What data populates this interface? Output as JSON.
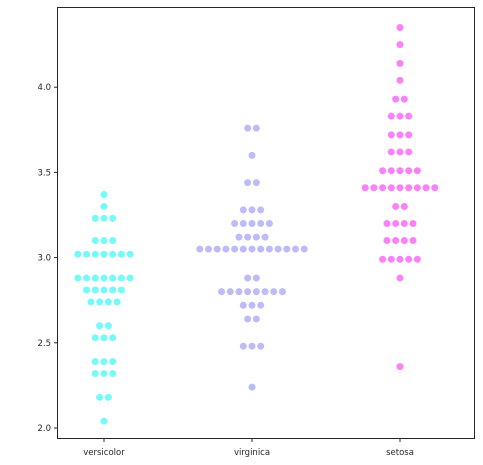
{
  "chart_data": {
    "type": "scatter",
    "subtype": "swarm",
    "title": "",
    "xlabel": "",
    "ylabel": "",
    "categories": [
      "versicolor",
      "virginica",
      "setosa"
    ],
    "ylim": [
      1.96,
      4.4
    ],
    "yticks": [
      "2.0",
      "2.5",
      "3.0",
      "3.5",
      "4.0"
    ],
    "grid": false,
    "colors": {
      "versicolor": "#5ef8f8",
      "virginica": "#b1b0f8",
      "setosa": "#f86cf8"
    },
    "series": [
      {
        "values": [
          3.37,
          3.3,
          3.23,
          3.23,
          3.23,
          3.1,
          3.1,
          3.1,
          3.02,
          3.02,
          3.02,
          3.02,
          3.02,
          3.02,
          3.02,
          2.88,
          2.88,
          2.88,
          2.88,
          2.88,
          2.88,
          2.88,
          2.81,
          2.81,
          2.81,
          2.81,
          2.81,
          2.74,
          2.74,
          2.74,
          2.74,
          2.6,
          2.6,
          2.53,
          2.53,
          2.53,
          2.39,
          2.39,
          2.39,
          2.32,
          2.32,
          2.32,
          2.18,
          2.18,
          2.04
        ]
      },
      {
        "values": [
          3.76,
          3.76,
          3.6,
          3.44,
          3.44,
          3.28,
          3.28,
          3.28,
          3.2,
          3.2,
          3.2,
          3.2,
          3.2,
          3.12,
          3.12,
          3.12,
          3.12,
          3.05,
          3.05,
          3.05,
          3.05,
          3.05,
          3.05,
          3.05,
          3.05,
          3.05,
          3.05,
          3.05,
          3.05,
          3.05,
          2.88,
          2.88,
          2.8,
          2.8,
          2.8,
          2.8,
          2.8,
          2.8,
          2.8,
          2.8,
          2.72,
          2.72,
          2.72,
          2.64,
          2.64,
          2.48,
          2.48,
          2.48,
          2.24
        ]
      },
      {
        "values": [
          4.35,
          4.25,
          4.14,
          4.04,
          3.93,
          3.93,
          3.83,
          3.83,
          3.83,
          3.72,
          3.72,
          3.72,
          3.62,
          3.62,
          3.62,
          3.51,
          3.51,
          3.51,
          3.51,
          3.51,
          3.41,
          3.41,
          3.41,
          3.41,
          3.41,
          3.41,
          3.41,
          3.41,
          3.41,
          3.3,
          3.3,
          3.2,
          3.2,
          3.2,
          3.2,
          3.1,
          3.1,
          3.1,
          3.1,
          2.99,
          2.99,
          2.99,
          2.99,
          2.99,
          2.88,
          2.36
        ]
      }
    ]
  }
}
